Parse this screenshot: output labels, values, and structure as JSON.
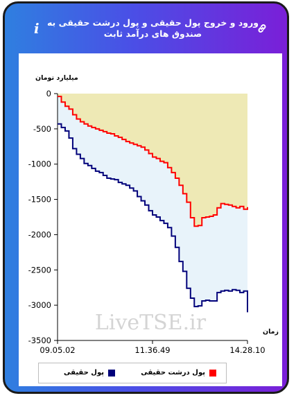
{
  "header": {
    "title": "ورود و خروج پول حقیقی و پول درشت حقیقی به صندوق های درآمد ثابت",
    "info_icon": "i",
    "link_icon": "link-icon"
  },
  "watermark": "LiveTSE.ir",
  "chart_data": {
    "type": "line",
    "ylabel": "میلیارد تومان",
    "xlabel": "زمان",
    "ylim": [
      -3500,
      0
    ],
    "yticks": [
      0,
      -500,
      -1000,
      -1500,
      -2000,
      -2500,
      -3000,
      -3500
    ],
    "x_tick_labels": [
      "09.05.02",
      "11.36.49",
      "14.28.10"
    ],
    "grid": false,
    "legend_position": "bottom",
    "colors": {
      "upper_fill": "#eee9b5",
      "between_fill": "#e8f3fa",
      "red": "#ff0000",
      "navy": "#00007a"
    },
    "series": [
      {
        "name": "پول درشت حقیقی",
        "color": "#ff0000",
        "values": [
          -40,
          -120,
          -180,
          -220,
          -300,
          -360,
          -400,
          -430,
          -460,
          -480,
          -500,
          -520,
          -540,
          -560,
          -570,
          -600,
          -620,
          -650,
          -680,
          -700,
          -720,
          -740,
          -760,
          -800,
          -850,
          -900,
          -920,
          -960,
          -980,
          -1050,
          -1120,
          -1200,
          -1300,
          -1420,
          -1540,
          -1760,
          -1880,
          -1870,
          -1760,
          -1750,
          -1740,
          -1720,
          -1620,
          -1560,
          -1570,
          -1580,
          -1600,
          -1620,
          -1600,
          -1640,
          -1610
        ]
      },
      {
        "name": "پول حقیقی",
        "color": "#00007a",
        "values": [
          -430,
          -480,
          -530,
          -630,
          -780,
          -860,
          -920,
          -990,
          -1020,
          -1060,
          -1100,
          -1120,
          -1160,
          -1200,
          -1210,
          -1220,
          -1260,
          -1280,
          -1300,
          -1340,
          -1380,
          -1460,
          -1520,
          -1580,
          -1660,
          -1720,
          -1750,
          -1800,
          -1840,
          -1900,
          -2020,
          -2180,
          -2380,
          -2520,
          -2760,
          -2900,
          -3020,
          -3010,
          -2940,
          -2930,
          -2940,
          -2940,
          -2820,
          -2800,
          -2790,
          -2800,
          -2780,
          -2790,
          -2820,
          -2800,
          -3100
        ]
      }
    ]
  }
}
